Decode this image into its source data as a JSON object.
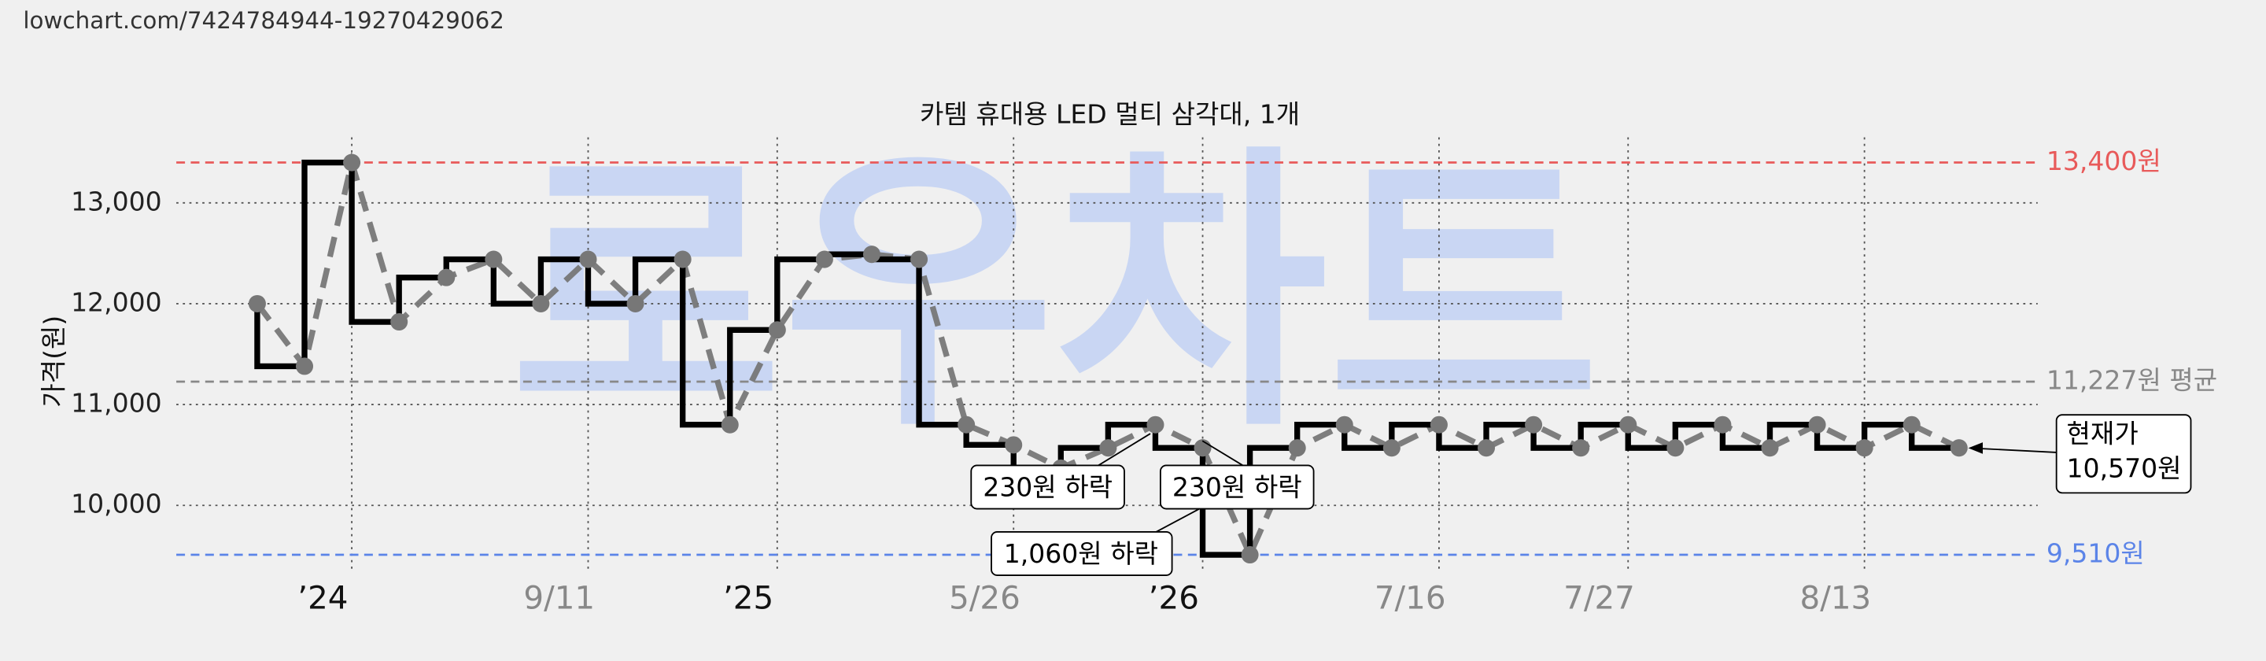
{
  "url": "lowchart.com/7424784944-19270429062",
  "chart_data": {
    "type": "line",
    "title": "카템 휴대용 LED 멀티 삼각대, 1개",
    "y_label": "가격(원)",
    "watermark": "로우차트",
    "categories": [
      null,
      null,
      "’24",
      null,
      null,
      null,
      null,
      "9/11",
      null,
      null,
      null,
      "’25",
      null,
      null,
      null,
      null,
      "5/26",
      null,
      null,
      null,
      "’26",
      null,
      null,
      null,
      null,
      "7/16",
      null,
      null,
      null,
      "7/27",
      null,
      null,
      null,
      null,
      "8/13",
      null,
      null
    ],
    "series": [
      {
        "color": "#000000",
        "marker_color": "#777777",
        "values": [
          12000,
          11380,
          13400,
          11820,
          12260,
          12440,
          12000,
          12440,
          12000,
          12440,
          10800,
          11740,
          12440,
          12490,
          12440,
          10800,
          10600,
          10370,
          10570,
          10800,
          10570,
          9510,
          10570,
          10800,
          10570,
          10800,
          10570,
          10800,
          10570,
          10800,
          10570,
          10800,
          10570,
          10800,
          10570,
          10800,
          10570
        ]
      }
    ],
    "ylim": [
      9350,
      13650
    ],
    "yticks": [
      {
        "value": 10000,
        "label": "10,000"
      },
      {
        "value": 11000,
        "label": "11,000"
      },
      {
        "value": 12000,
        "label": "12,000"
      },
      {
        "value": 13000,
        "label": "13,000"
      }
    ],
    "grid": true,
    "reference_lines": [
      {
        "value": 13400,
        "label": "13,400원",
        "color": "#e85a5a"
      },
      {
        "value": 11227,
        "label": "11,227원 평균",
        "color": "#888888"
      },
      {
        "value": 9510,
        "label": "9,510원",
        "color": "#5b84e8"
      }
    ],
    "annotations": [
      "230원 하락",
      "230원 하락",
      "1,060원 하락"
    ],
    "current_price": {
      "label": "현재가",
      "value_label": "10,570원"
    }
  }
}
